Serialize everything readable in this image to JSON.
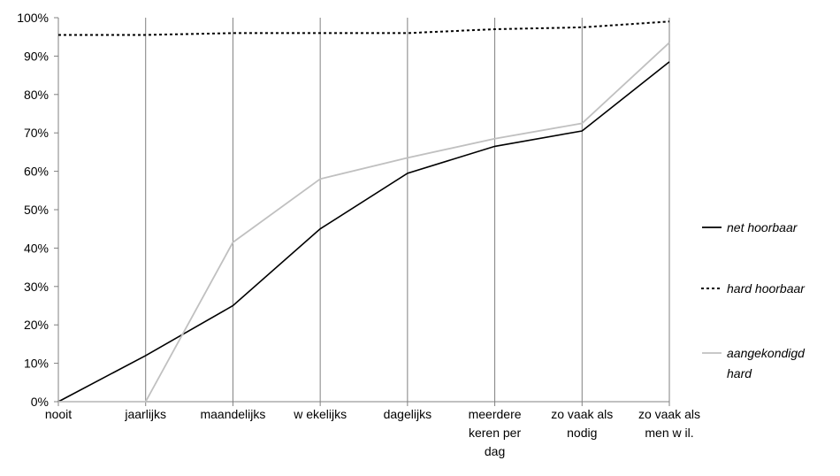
{
  "chart_data": {
    "type": "line",
    "categories": [
      [
        "nooit"
      ],
      [
        "jaarlijks"
      ],
      [
        "maandelijks"
      ],
      [
        "w ekelijks"
      ],
      [
        "dagelijks"
      ],
      [
        "meerdere",
        "keren per",
        "dag"
      ],
      [
        "zo vaak als",
        "nodig"
      ],
      [
        "zo vaak als",
        "men w il."
      ]
    ],
    "y_ticks": [
      "0%",
      "10%",
      "20%",
      "30%",
      "40%",
      "50%",
      "60%",
      "70%",
      "80%",
      "90%",
      "100%"
    ],
    "ylim": [
      0,
      100
    ],
    "grid": "vertical",
    "legend_position": "right",
    "series": [
      {
        "name": [
          "net hoorbaar"
        ],
        "color": "#000000",
        "dash": "solid",
        "values": [
          0,
          12,
          25,
          45,
          59.5,
          66.5,
          70.5,
          88.5
        ]
      },
      {
        "name": [
          "hard hoorbaar"
        ],
        "color": "#000000",
        "dash": "dotted",
        "values": [
          95.5,
          95.5,
          96,
          96,
          96,
          97,
          97.5,
          99
        ]
      },
      {
        "name": [
          "aangekondigd",
          "hard"
        ],
        "color": "#c0c0c0",
        "dash": "solid",
        "values": [
          0,
          0,
          41.5,
          58,
          63.5,
          68.5,
          72.5,
          93.5
        ]
      }
    ]
  }
}
